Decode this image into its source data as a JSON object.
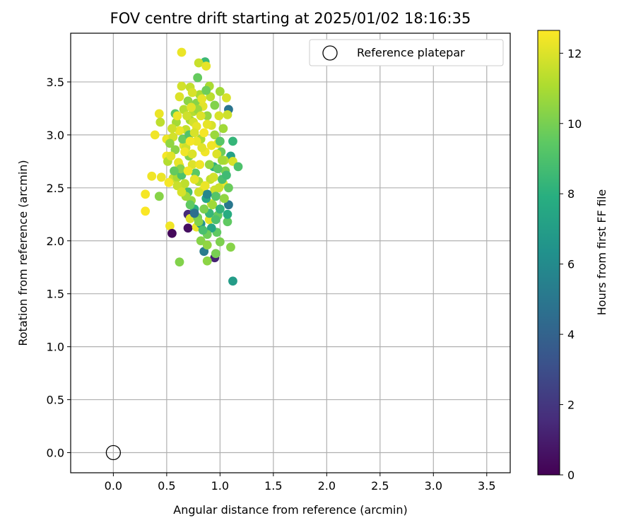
{
  "chart_data": {
    "type": "scatter",
    "title": "FOV centre drift starting at 2025/01/02 18:16:35",
    "xlabel": "Angular distance from reference (arcmin)",
    "ylabel": "Rotation from reference (arcmin)",
    "xlim": [
      -0.4,
      3.72
    ],
    "ylim": [
      -0.19,
      3.96
    ],
    "xticks": [
      "0.0",
      "0.5",
      "1.0",
      "1.5",
      "2.0",
      "2.5",
      "3.0",
      "3.5"
    ],
    "yticks": [
      "0.0",
      "0.5",
      "1.0",
      "1.5",
      "2.0",
      "2.5",
      "3.0",
      "3.5"
    ],
    "grid": true,
    "legend_position": "top-right",
    "colormap": "viridis",
    "colorbar": {
      "label": "Hours from first FF file",
      "range": [
        0,
        12.65
      ],
      "ticks": [
        "0",
        "2",
        "4",
        "6",
        "8",
        "10",
        "12"
      ]
    },
    "reference": {
      "name": "Reference platepar",
      "x": 0.0,
      "y": 0.0
    },
    "points": [
      [
        0.64,
        3.78,
        12.3
      ],
      [
        0.86,
        3.69,
        8.5
      ],
      [
        0.8,
        3.68,
        11.6
      ],
      [
        0.87,
        3.65,
        12.2
      ],
      [
        0.79,
        3.54,
        9.6
      ],
      [
        0.64,
        3.46,
        11.8
      ],
      [
        0.72,
        3.45,
        11.5
      ],
      [
        0.9,
        3.46,
        11.0
      ],
      [
        1.0,
        3.41,
        10.8
      ],
      [
        0.62,
        3.36,
        12.0
      ],
      [
        1.06,
        3.35,
        11.9
      ],
      [
        1.08,
        3.24,
        4.9
      ],
      [
        0.58,
        3.2,
        9.3
      ],
      [
        0.43,
        3.2,
        12.3
      ],
      [
        1.07,
        3.19,
        11.7
      ],
      [
        0.44,
        3.12,
        11.4
      ],
      [
        0.39,
        3.0,
        12.4
      ],
      [
        0.5,
        2.96,
        12.3
      ],
      [
        1.12,
        2.94,
        8.3
      ],
      [
        1.1,
        2.8,
        7.2
      ],
      [
        0.5,
        2.8,
        12.5
      ],
      [
        0.51,
        2.75,
        11.2
      ],
      [
        1.12,
        2.75,
        11.9
      ],
      [
        1.17,
        2.7,
        9.0
      ],
      [
        0.36,
        2.61,
        12.4
      ],
      [
        0.45,
        2.6,
        12.3
      ],
      [
        0.56,
        2.59,
        11.6
      ],
      [
        0.3,
        2.44,
        12.5
      ],
      [
        0.43,
        2.42,
        10.3
      ],
      [
        0.3,
        2.28,
        12.6
      ],
      [
        0.52,
        2.55,
        12.5
      ],
      [
        0.53,
        2.14,
        12.4
      ],
      [
        0.55,
        2.07,
        0.3
      ],
      [
        0.7,
        2.25,
        1.5
      ],
      [
        0.72,
        2.21,
        12.0
      ],
      [
        0.7,
        2.12,
        0.5
      ],
      [
        0.78,
        2.13,
        12.3
      ],
      [
        0.82,
        2.0,
        10.3
      ],
      [
        0.85,
        1.9,
        5.2
      ],
      [
        0.88,
        1.96,
        10.5
      ],
      [
        0.95,
        1.84,
        1.2
      ],
      [
        0.96,
        1.88,
        10.0
      ],
      [
        0.88,
        1.81,
        10.4
      ],
      [
        0.62,
        1.8,
        10.2
      ],
      [
        1.0,
        1.99,
        10.1
      ],
      [
        1.07,
        2.18,
        9.5
      ],
      [
        1.07,
        2.25,
        7.8
      ],
      [
        1.08,
        2.34,
        5.0
      ],
      [
        1.1,
        1.94,
        10.3
      ],
      [
        1.12,
        1.62,
        6.9
      ],
      [
        0.97,
        2.08,
        9.5
      ],
      [
        0.9,
        2.2,
        12.2
      ],
      [
        0.92,
        2.35,
        12.1
      ],
      [
        1.03,
        2.54,
        12.3
      ],
      [
        0.98,
        2.24,
        9.6
      ],
      [
        0.95,
        2.48,
        11.7
      ],
      [
        0.65,
        2.5,
        12.0
      ],
      [
        0.6,
        2.6,
        11.0
      ],
      [
        0.62,
        2.71,
        12.3
      ],
      [
        0.66,
        2.9,
        12.1
      ],
      [
        0.68,
        3.05,
        11.5
      ],
      [
        0.72,
        3.14,
        10.9
      ],
      [
        0.75,
        3.22,
        11.2
      ],
      [
        0.78,
        3.3,
        10.3
      ],
      [
        0.81,
        3.38,
        11.0
      ],
      [
        0.84,
        3.27,
        12.1
      ],
      [
        0.88,
        3.18,
        10.6
      ],
      [
        0.92,
        3.09,
        11.9
      ],
      [
        0.95,
        3.0,
        10.7
      ],
      [
        0.98,
        2.92,
        12.2
      ],
      [
        1.01,
        2.84,
        9.8
      ],
      [
        1.04,
        2.76,
        11.3
      ],
      [
        1.05,
        2.66,
        10.0
      ],
      [
        1.02,
        2.58,
        8.9
      ],
      [
        0.99,
        2.5,
        11.6
      ],
      [
        0.96,
        2.42,
        9.2
      ],
      [
        0.93,
        2.34,
        10.8
      ],
      [
        0.9,
        2.26,
        8.4
      ],
      [
        0.87,
        2.4,
        7.6
      ],
      [
        0.84,
        2.48,
        12.4
      ],
      [
        0.8,
        2.56,
        11.1
      ],
      [
        0.77,
        2.64,
        9.4
      ],
      [
        0.74,
        2.72,
        12.0
      ],
      [
        0.71,
        2.8,
        10.2
      ],
      [
        0.68,
        2.88,
        11.7
      ],
      [
        0.65,
        2.96,
        9.7
      ],
      [
        0.62,
        3.04,
        12.3
      ],
      [
        0.59,
        3.12,
        10.9
      ],
      [
        0.56,
        2.98,
        11.8
      ],
      [
        0.58,
        2.86,
        10.4
      ],
      [
        0.61,
        2.74,
        12.2
      ],
      [
        0.64,
        2.62,
        9.0
      ],
      [
        0.67,
        2.54,
        11.4
      ],
      [
        0.7,
        2.46,
        8.8
      ],
      [
        0.73,
        2.38,
        10.6
      ],
      [
        0.76,
        2.3,
        7.9
      ],
      [
        0.79,
        2.22,
        9.9
      ],
      [
        0.82,
        2.16,
        6.5
      ],
      [
        0.85,
        2.3,
        10.1
      ],
      [
        0.88,
        2.44,
        5.8
      ],
      [
        0.91,
        2.58,
        11.5
      ],
      [
        0.94,
        2.7,
        8.1
      ],
      [
        0.97,
        2.82,
        12.0
      ],
      [
        1.0,
        2.94,
        9.3
      ],
      [
        1.03,
        3.06,
        10.8
      ],
      [
        0.99,
        3.18,
        11.9
      ],
      [
        0.95,
        3.28,
        10.2
      ],
      [
        0.91,
        3.36,
        11.3
      ],
      [
        0.87,
        3.42,
        9.8
      ],
      [
        0.83,
        3.34,
        12.2
      ],
      [
        0.79,
        3.24,
        10.7
      ],
      [
        0.75,
        3.12,
        11.8
      ],
      [
        0.71,
        3.0,
        9.1
      ],
      [
        0.67,
        2.84,
        12.4
      ],
      [
        0.63,
        2.68,
        10.3
      ],
      [
        0.6,
        2.52,
        11.6
      ],
      [
        0.57,
        2.66,
        9.6
      ],
      [
        0.54,
        2.8,
        12.1
      ],
      [
        0.53,
        2.92,
        10.5
      ],
      [
        0.55,
        3.06,
        11.7
      ],
      [
        0.6,
        3.18,
        12.3
      ],
      [
        0.66,
        3.24,
        11.2
      ],
      [
        0.7,
        3.32,
        10.4
      ],
      [
        0.74,
        3.4,
        11.9
      ],
      [
        0.78,
        3.08,
        12.2
      ],
      [
        0.82,
        2.96,
        11.0
      ],
      [
        0.86,
        2.84,
        12.4
      ],
      [
        0.9,
        2.72,
        10.6
      ],
      [
        0.94,
        2.6,
        11.8
      ],
      [
        0.98,
        2.68,
        9.4
      ],
      [
        1.02,
        2.76,
        10.9
      ],
      [
        1.06,
        2.62,
        8.6
      ],
      [
        1.08,
        2.5,
        9.7
      ],
      [
        1.04,
        2.4,
        10.5
      ],
      [
        1.0,
        2.3,
        8.2
      ],
      [
        0.96,
        2.2,
        9.0
      ],
      [
        0.92,
        2.12,
        7.4
      ],
      [
        0.88,
        2.06,
        9.8
      ],
      [
        0.84,
        2.1,
        8.9
      ],
      [
        0.8,
        2.18,
        10.2
      ],
      [
        0.76,
        2.26,
        4.6
      ],
      [
        0.72,
        2.34,
        9.5
      ],
      [
        0.68,
        2.42,
        10.8
      ],
      [
        0.64,
        2.46,
        11.9
      ],
      [
        0.81,
        2.72,
        12.4
      ],
      [
        0.83,
        2.88,
        12.1
      ],
      [
        0.85,
        3.02,
        12.5
      ],
      [
        0.78,
        2.94,
        12.3
      ],
      [
        0.74,
        2.82,
        12.0
      ],
      [
        0.7,
        2.66,
        12.4
      ],
      [
        0.76,
        2.58,
        12.2
      ],
      [
        0.8,
        2.46,
        11.8
      ],
      [
        0.86,
        2.52,
        12.3
      ],
      [
        0.92,
        2.9,
        12.4
      ],
      [
        0.88,
        3.1,
        12.2
      ],
      [
        0.82,
        3.18,
        12.0
      ],
      [
        0.76,
        3.02,
        11.9
      ],
      [
        0.72,
        2.94,
        12.5
      ],
      [
        0.69,
        3.18,
        11.7
      ],
      [
        0.73,
        3.26,
        12.1
      ]
    ]
  }
}
